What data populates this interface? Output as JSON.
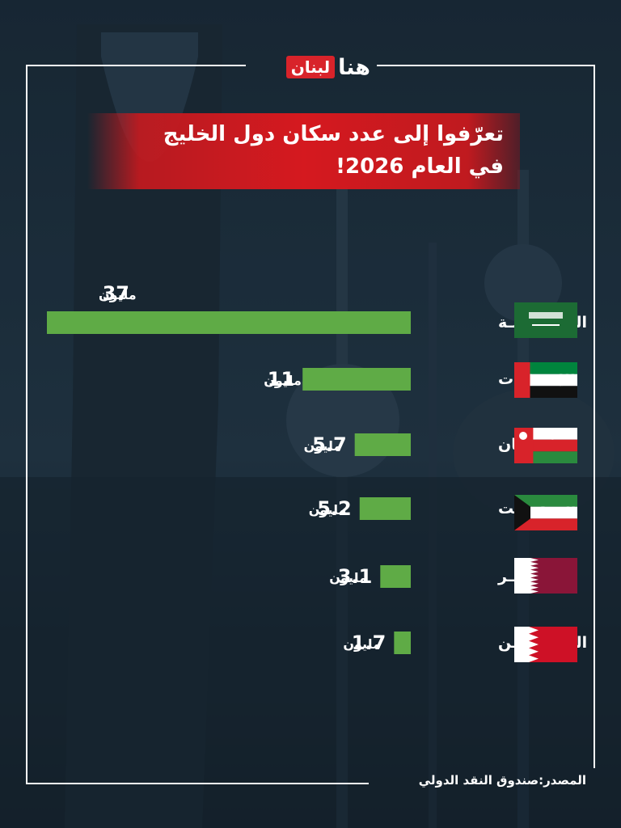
{
  "brand": {
    "hona": "هنا",
    "lubnan": "لبنان"
  },
  "title": {
    "line1": "تعرّفوا إلى عدد سكان دول الخليج",
    "line2": "في العام 2026!"
  },
  "source": "المصدر:صندوق النقد الدولي",
  "colors": {
    "bar": "#5fab46",
    "banner": "#d5191f",
    "text": "#ffffff"
  },
  "chart_data": {
    "type": "bar",
    "orientation": "horizontal",
    "unit": "مليون",
    "categories": [
      "الـسـعـوديـة",
      "الإمـــارات",
      "عُـمـــان",
      "الـــكـويـت",
      "قـــطـــر",
      "الـــبـحـريـن"
    ],
    "values": [
      37,
      11,
      5.7,
      5.2,
      3.1,
      1.7
    ],
    "value_labels": [
      "37",
      "11",
      "5.7",
      "5.2",
      "3.1",
      "1.7"
    ],
    "flags": [
      "saudi-flag-icon",
      "uae-flag-icon",
      "oman-flag-icon",
      "kuwait-flag-icon",
      "qatar-flag-icon",
      "bahrain-flag-icon"
    ],
    "grid": false,
    "legend": "none"
  }
}
